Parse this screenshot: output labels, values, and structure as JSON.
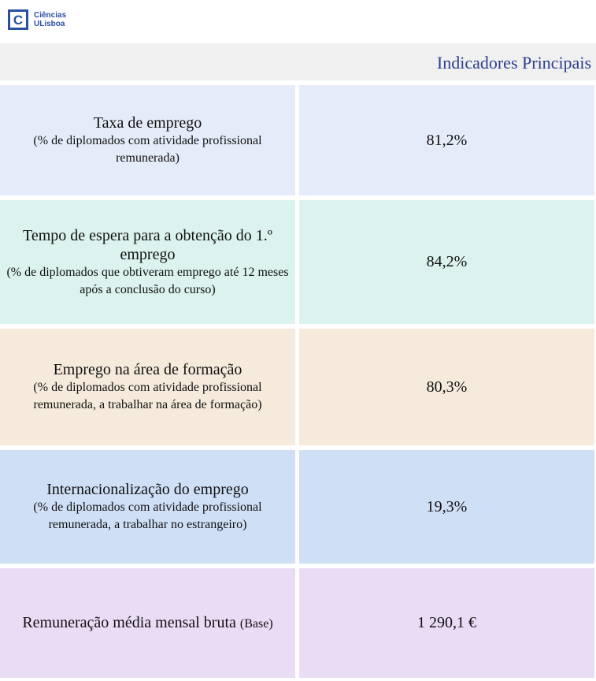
{
  "logo": {
    "mark": "C",
    "line1": "Ciências",
    "line2": "ULisboa"
  },
  "header": {
    "title": "Indicadores Principais"
  },
  "rows": [
    {
      "main": "Taxa de emprego",
      "sub": "(% de diplomados com atividade profissional remunerada)",
      "value": "81,2%",
      "bg": "#e5ecf9"
    },
    {
      "main": "Tempo de espera para a obtenção do 1.º emprego",
      "sub": "(% de diplomados que obtiveram emprego até 12 meses após a conclusão do curso)",
      "value": "84,2%",
      "bg": "#dbf2ee"
    },
    {
      "main": "Emprego na área de formação",
      "sub": "(% de diplomados com atividade profissional remunerada, a trabalhar na área de formação)",
      "value": "80,3%",
      "bg": "#f5eadb"
    },
    {
      "main": "Internacionalização do emprego",
      "sub": "(% de diplomados com atividade profissional remunerada, a trabalhar no estrangeiro)",
      "value": "19,3%",
      "bg": "#cfdff6"
    },
    {
      "main": "Remuneração média mensal bruta",
      "main_suffix": "(Base)",
      "value": "1 290,1 €",
      "bg": "#e9ddf5"
    }
  ]
}
